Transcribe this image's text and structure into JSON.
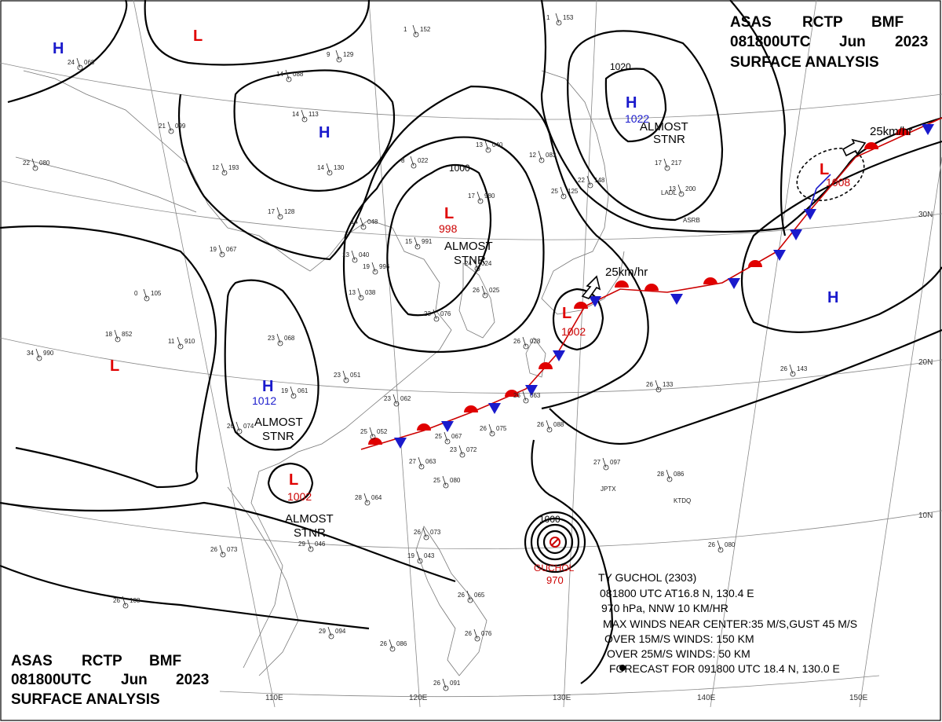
{
  "header_top": {
    "line1_a": "ASAS",
    "line1_b": "RCTP",
    "line1_c": "BMF",
    "line2_a": "081800UTC",
    "line2_b": "Jun",
    "line2_c": "2023",
    "line3": "SURFACE ANALYSIS"
  },
  "header_bottom": {
    "line1_a": "ASAS",
    "line1_b": "RCTP",
    "line1_c": "BMF",
    "line2_a": "081800UTC",
    "line2_b": "Jun",
    "line2_c": "2023",
    "line3": "SURFACE ANALYSIS"
  },
  "axes": {
    "longitudes": [
      "110E",
      "120E",
      "130E",
      "140E",
      "150E"
    ],
    "latitudes": [
      "30N",
      "20N",
      "10N"
    ]
  },
  "pressure_systems": {
    "h_nw": {
      "letter": "H"
    },
    "l_north": {
      "letter": "L"
    },
    "h_north": {
      "letter": "H"
    },
    "l_central": {
      "letter": "L",
      "pressure": "998",
      "status": "ALMOST STNR"
    },
    "h_japan": {
      "letter": "H",
      "pressure": "1022",
      "status": "ALMOST STNR",
      "isobar": "1020"
    },
    "l_ne": {
      "letter": "L",
      "pressure": "1008",
      "motion": "25km/hr"
    },
    "h_e": {
      "letter": "H"
    },
    "l_west": {
      "letter": "L"
    },
    "h_south": {
      "letter": "H",
      "pressure": "1012",
      "status": "ALMOST STNR"
    },
    "l_south": {
      "letter": "L",
      "pressure": "1002",
      "status": "ALMOST STNR"
    },
    "l_taiwan": {
      "letter": "L",
      "pressure": "1002",
      "motion": "25km/hr"
    },
    "typhoon": {
      "name": "GUCHOL",
      "pressure": "970",
      "isobar": "1000"
    }
  },
  "isobar_labels": {
    "central": "1000"
  },
  "typhoon_info": {
    "line1": "TY  GUCHOL  (2303)",
    "line2": "081800 UTC  AT16.8 N, 130.4 E",
    "line3": "970 hPa, NNW  10 KM/HR",
    "line4": "MAX WINDS NEAR CENTER:35 M/S,GUST 45 M/S",
    "line5": "OVER 15M/S WINDS: 150 KM",
    "line6": "OVER 25M/S WINDS: 50 KM",
    "line7": "FORECAST FOR 091800 UTC 18.4 N, 130.0 E"
  },
  "stations": [
    {
      "t": "24",
      "p": "068"
    },
    {
      "t": "14",
      "p": "088"
    },
    {
      "t": "21",
      "p": "099"
    },
    {
      "t": "22",
      "p": "080"
    },
    {
      "t": "12",
      "p": "193"
    },
    {
      "t": "14",
      "p": "113"
    },
    {
      "t": "14",
      "p": "130"
    },
    {
      "t": "17",
      "p": "128"
    },
    {
      "t": "1",
      "p": "152"
    },
    {
      "t": "9",
      "p": "129"
    },
    {
      "t": "8",
      "p": "022"
    },
    {
      "t": "13",
      "p": "040"
    },
    {
      "t": "14",
      "p": "048"
    },
    {
      "t": "17",
      "p": "980"
    },
    {
      "t": "15",
      "p": "991"
    },
    {
      "t": "19",
      "p": "996"
    },
    {
      "t": "13",
      "p": "038"
    },
    {
      "t": "13",
      "p": "040"
    },
    {
      "t": "19",
      "p": "067"
    },
    {
      "t": "0",
      "p": "105"
    },
    {
      "t": "18",
      "p": "852"
    },
    {
      "t": "34",
      "p": "990"
    },
    {
      "t": "11",
      "p": "910"
    },
    {
      "t": "23",
      "p": "068"
    },
    {
      "t": "19",
      "p": "061"
    },
    {
      "t": "26",
      "p": "074"
    },
    {
      "t": "23",
      "p": "051"
    },
    {
      "t": "23",
      "p": "062"
    },
    {
      "t": "25",
      "p": "052"
    },
    {
      "t": "25",
      "p": "067"
    },
    {
      "t": "26",
      "p": "063"
    },
    {
      "t": "26",
      "p": "075"
    },
    {
      "t": "26",
      "p": "088"
    },
    {
      "t": "23",
      "p": "072"
    },
    {
      "t": "27",
      "p": "063"
    },
    {
      "t": "25",
      "p": "080"
    },
    {
      "t": "28",
      "p": "064"
    },
    {
      "t": "29",
      "p": "046"
    },
    {
      "t": "26",
      "p": "073"
    },
    {
      "t": "26",
      "p": "073"
    },
    {
      "t": "19",
      "p": "043"
    },
    {
      "t": "26",
      "p": "065"
    },
    {
      "t": "29",
      "p": "094"
    },
    {
      "t": "26",
      "p": "086"
    },
    {
      "t": "26",
      "p": "076"
    },
    {
      "t": "26",
      "p": "091"
    },
    {
      "t": "26",
      "p": "108"
    },
    {
      "t": "27",
      "p": "097"
    },
    {
      "t": "28",
      "p": "086"
    },
    {
      "t": "26",
      "p": "080"
    },
    {
      "t": "26",
      "p": "143"
    },
    {
      "t": "26",
      "p": "133"
    },
    {
      "t": "25",
      "p": "125"
    },
    {
      "t": "12",
      "p": "083"
    },
    {
      "t": "17",
      "p": "217"
    },
    {
      "t": "13",
      "p": "200"
    },
    {
      "t": "22",
      "p": "148"
    },
    {
      "t": "1",
      "p": "153"
    },
    {
      "t": "26",
      "p": "025"
    },
    {
      "t": "24",
      "p": "024"
    },
    {
      "t": "23",
      "p": "076"
    },
    {
      "t": "26",
      "p": "028"
    }
  ],
  "station_ids": {
    "jptx": "JPTX",
    "ktdq": "KTDQ",
    "ladl": "LADL",
    "asrb": "ASRB"
  },
  "colors": {
    "high": "#1a1acc",
    "low": "#e00000",
    "warm_front": "#e00000",
    "cold_front": "#1a1acc"
  }
}
